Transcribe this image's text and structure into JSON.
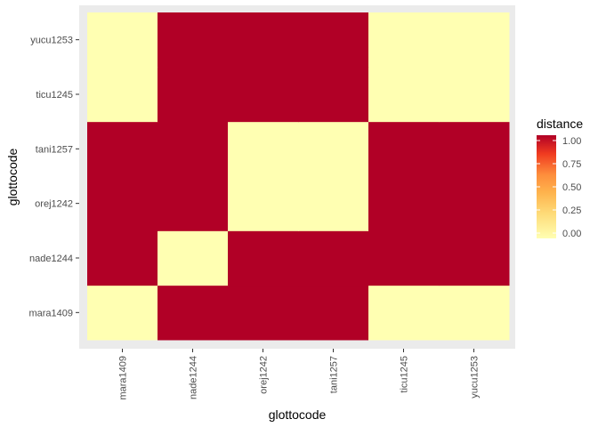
{
  "chart_data": {
    "type": "heatmap",
    "title": "",
    "xlabel": "glottocode",
    "ylabel": "glottocode",
    "x_categories": [
      "mara1409",
      "nade1244",
      "orej1242",
      "tani1257",
      "ticu1245",
      "yucu1253"
    ],
    "y_categories": [
      "mara1409",
      "nade1244",
      "orej1242",
      "tani1257",
      "ticu1245",
      "yucu1253"
    ],
    "values": [
      [
        0,
        1,
        1,
        1,
        0,
        0
      ],
      [
        1,
        0,
        1,
        1,
        1,
        1
      ],
      [
        1,
        1,
        0,
        0,
        1,
        1
      ],
      [
        1,
        1,
        0,
        0,
        1,
        1
      ],
      [
        0,
        1,
        1,
        1,
        0,
        0
      ],
      [
        0,
        1,
        1,
        1,
        0,
        0
      ]
    ],
    "legend": {
      "title": "distance",
      "ticks": [
        "0.00",
        "0.25",
        "0.50",
        "0.75",
        "1.00"
      ],
      "tick_values": [
        0,
        0.25,
        0.5,
        0.75,
        1
      ],
      "placement": "right"
    },
    "color_scale": {
      "low": "#ffffb2",
      "stops": [
        "#ffffb2",
        "#fed976",
        "#feb24c",
        "#fd8d3c",
        "#f03b20",
        "#bd0026"
      ],
      "high": "#b10026"
    },
    "panel_background": "#ebebeb",
    "grid": true
  }
}
